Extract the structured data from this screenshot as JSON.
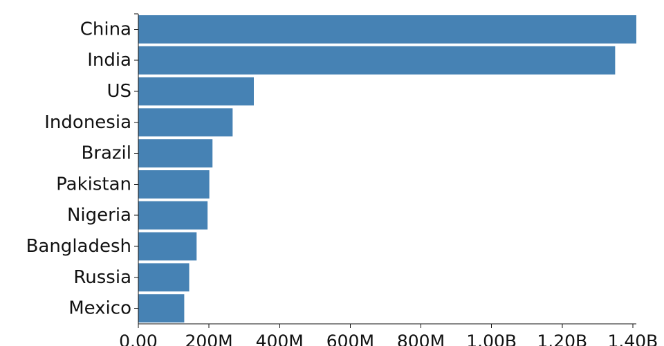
{
  "chart_data": {
    "type": "bar",
    "orientation": "horizontal",
    "categories": [
      "China",
      "India",
      "US",
      "Indonesia",
      "Brazil",
      "Pakistan",
      "Nigeria",
      "Bangladesh",
      "Russia",
      "Mexico"
    ],
    "values": [
      1410000000,
      1350000000,
      327000000,
      267000000,
      210000000,
      201000000,
      196000000,
      165000000,
      144000000,
      130000000
    ],
    "xlim": [
      0,
      1410000000
    ],
    "x_ticks": [
      0,
      200000000,
      400000000,
      600000000,
      800000000,
      1000000000,
      1200000000,
      1400000000
    ],
    "x_tick_labels": [
      "0.00",
      "200M",
      "400M",
      "600M",
      "800M",
      "1.00B",
      "1.20B",
      "1.40B"
    ],
    "bar_color": "#4682b4",
    "grid": false,
    "title": "",
    "xlabel": "",
    "ylabel": ""
  }
}
